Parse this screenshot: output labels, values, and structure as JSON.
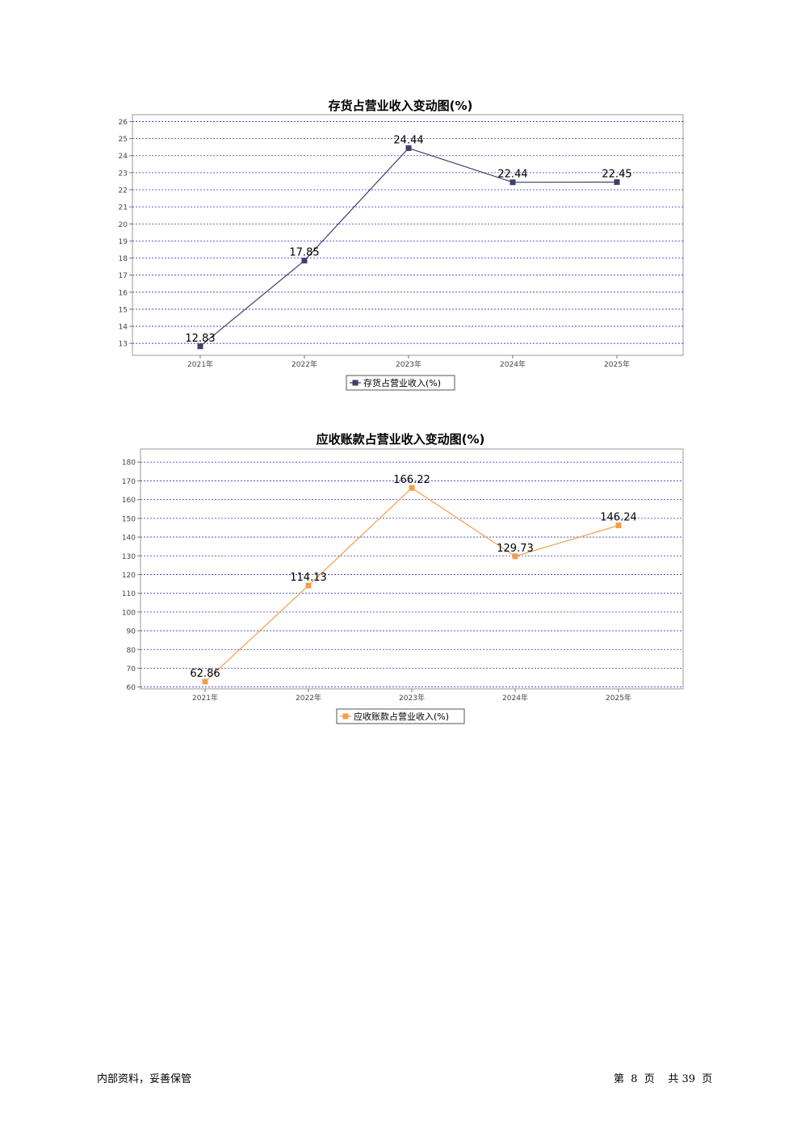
{
  "charts": [
    {
      "title": "存货占营业收入变动图(%)",
      "legend_label": "存货占营业收入(%)",
      "color": "#3f3f6b"
    },
    {
      "title": "应收账款占营业收入变动图(%)",
      "legend_label": "应收账款占营业收入(%)",
      "color": "#f0a04b"
    }
  ],
  "chart_data": [
    {
      "type": "line",
      "title": "存货占营业收入变动图(%)",
      "categories": [
        "2021年",
        "2022年",
        "2023年",
        "2024年",
        "2025年"
      ],
      "series": [
        {
          "name": "存货占营业收入(%)",
          "values": [
            12.83,
            17.85,
            24.44,
            22.44,
            22.45
          ]
        }
      ],
      "data_labels": [
        "12.83",
        "17.85",
        "24.44",
        "22.44",
        "22.45"
      ],
      "yticks": [
        13,
        14,
        15,
        16,
        17,
        18,
        19,
        20,
        21,
        22,
        23,
        24,
        25,
        26
      ],
      "ylim": [
        12.3,
        26.4
      ],
      "grid": true,
      "legend": "bottom-center",
      "xlabel": "",
      "ylabel": ""
    },
    {
      "type": "line",
      "title": "应收账款占营业收入变动图(%)",
      "categories": [
        "2021年",
        "2022年",
        "2023年",
        "2024年",
        "2025年"
      ],
      "series": [
        {
          "name": "应收账款占营业收入(%)",
          "values": [
            62.86,
            114.13,
            166.22,
            129.73,
            146.24
          ]
        }
      ],
      "data_labels": [
        "62.86",
        "114.13",
        "166.22",
        "129.73",
        "146.24"
      ],
      "yticks": [
        60,
        70,
        80,
        90,
        100,
        110,
        120,
        130,
        140,
        150,
        160,
        170,
        180
      ],
      "ylim": [
        59,
        187
      ],
      "grid": true,
      "legend": "bottom-center",
      "xlabel": "",
      "ylabel": ""
    }
  ],
  "footer": {
    "left": "内部资料，妥善保管",
    "right": "第  8  页    共 39  页"
  }
}
